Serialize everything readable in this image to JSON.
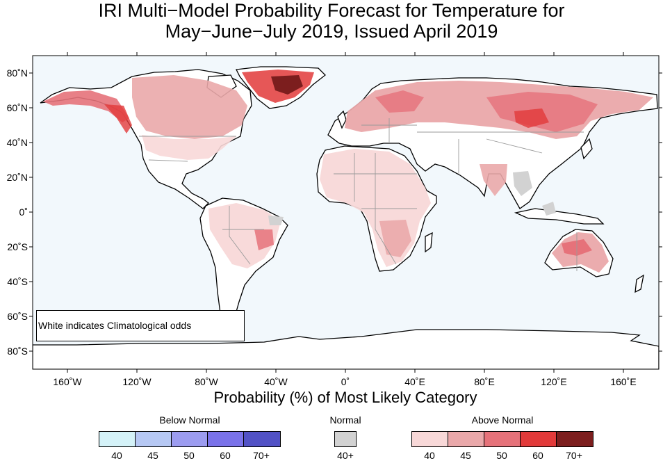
{
  "title": {
    "line1": "IRI Multi−Model Probability Forecast for Temperature for",
    "line2": "May−June−July 2019, Issued April 2019"
  },
  "map": {
    "projection": "equirectangular",
    "ocean_color": "#f2f8fc",
    "land_fill_color": "#ffffff",
    "coastline_color": "#000000",
    "border_color": "#9a9a9a",
    "lat_ticks": [
      "80˚N",
      "60˚N",
      "40˚N",
      "20˚N",
      "0˚",
      "20˚S",
      "40˚S",
      "60˚S",
      "80˚S"
    ],
    "lon_ticks": [
      "160˚W",
      "120˚W",
      "80˚W",
      "40˚W",
      "0˚",
      "40˚E",
      "80˚E",
      "120˚E",
      "160˚E"
    ],
    "note": "White indicates Climatological odds"
  },
  "xlabel": "Probability (%) of Most Likely Category",
  "legend": {
    "below": {
      "title": "Below Normal",
      "colors": [
        "#d4f2f8",
        "#b6c8f4",
        "#9c9cf0",
        "#7a72ea",
        "#5252c6"
      ],
      "labels": [
        "40",
        "45",
        "50",
        "60",
        "70+"
      ]
    },
    "normal": {
      "title": "Normal",
      "colors": [
        "#d2d2d2"
      ],
      "labels": [
        "40+"
      ]
    },
    "above": {
      "title": "Above Normal",
      "colors": [
        "#f8d8d8",
        "#eaa8aa",
        "#e6727a",
        "#e23a3a",
        "#7c1e1e"
      ],
      "labels": [
        "40",
        "45",
        "50",
        "60",
        "70+"
      ]
    }
  }
}
